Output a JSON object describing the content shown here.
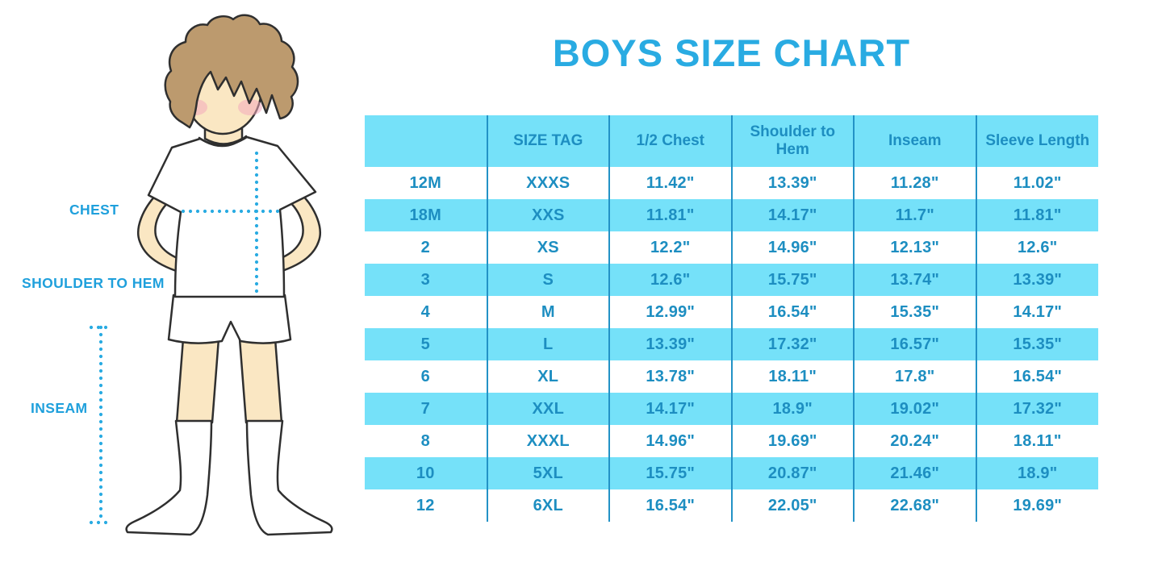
{
  "title": "BOYS SIZE CHART",
  "figure": {
    "chest_label": "CHEST",
    "shoulder_to_hem_label": "SHOULDER TO HEM",
    "inseam_label": "INSEAM"
  },
  "colors": {
    "title_blue": "#29ABE2",
    "label_blue": "#1FA0DC",
    "table_text_blue": "#1D8EC1",
    "row_light_blue": "#75E1F9",
    "grid_line_blue": "#2392C6",
    "dotted_line_blue": "#29ABE2",
    "hair_brown": "#BC9A6E",
    "skin_tone": "#FAE7C3",
    "blush_pink": "#F2A9BC",
    "outline_dark": "#2F2F2F"
  },
  "chart_data": {
    "type": "table",
    "title": "BOYS SIZE CHART",
    "columns": [
      "",
      "SIZE TAG",
      "1/2 Chest",
      "Shoulder to Hem",
      "Inseam",
      "Sleeve Length"
    ],
    "rows": [
      [
        "12M",
        "XXXS",
        "11.42\"",
        "13.39\"",
        "11.28\"",
        "11.02\""
      ],
      [
        "18M",
        "XXS",
        "11.81\"",
        "14.17\"",
        "11.7\"",
        "11.81\""
      ],
      [
        "2",
        "XS",
        "12.2\"",
        "14.96\"",
        "12.13\"",
        "12.6\""
      ],
      [
        "3",
        "S",
        "12.6\"",
        "15.75\"",
        "13.74\"",
        "13.39\""
      ],
      [
        "4",
        "M",
        "12.99\"",
        "16.54\"",
        "15.35\"",
        "14.17\""
      ],
      [
        "5",
        "L",
        "13.39\"",
        "17.32\"",
        "16.57\"",
        "15.35\""
      ],
      [
        "6",
        "XL",
        "13.78\"",
        "18.11\"",
        "17.8\"",
        "16.54\""
      ],
      [
        "7",
        "XXL",
        "14.17\"",
        "18.9\"",
        "19.02\"",
        "17.32\""
      ],
      [
        "8",
        "XXXL",
        "14.96\"",
        "19.69\"",
        "20.24\"",
        "18.11\""
      ],
      [
        "10",
        "5XL",
        "15.75\"",
        "20.87\"",
        "21.46\"",
        "18.9\""
      ],
      [
        "12",
        "6XL",
        "16.54\"",
        "22.05\"",
        "22.68\"",
        "19.69\""
      ]
    ]
  }
}
